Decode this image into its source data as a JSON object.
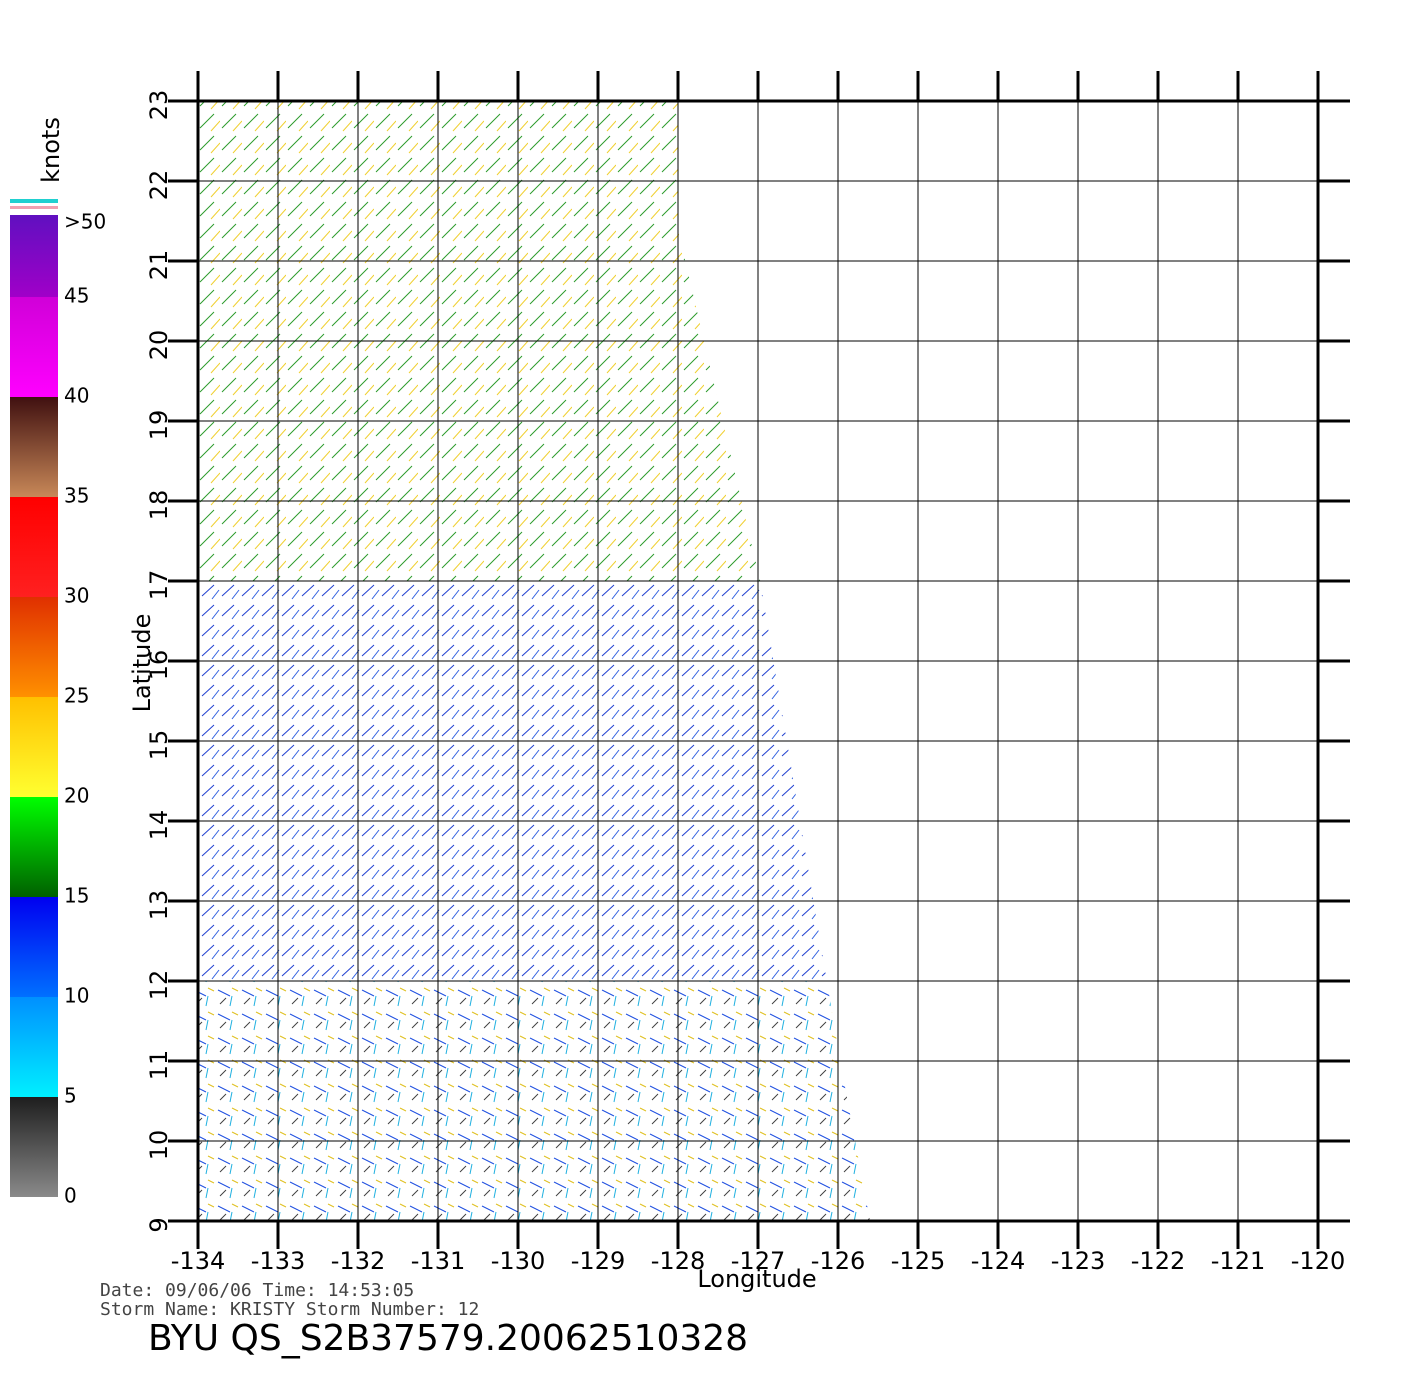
{
  "chart_data": {
    "type": "vector_field",
    "x_label": "Longitude",
    "y_label": "Latitude",
    "xlim": [
      -134,
      -120
    ],
    "xticks": [
      -134,
      -133,
      -132,
      -131,
      -130,
      -129,
      -128,
      -127,
      -126,
      -125,
      -124,
      -123,
      -122,
      -121,
      -120
    ],
    "ylim": [
      9,
      23
    ],
    "yticks": [
      9,
      10,
      11,
      12,
      13,
      14,
      15,
      16,
      17,
      18,
      19,
      20,
      21,
      22,
      23
    ],
    "grid": true,
    "colorbar": {
      "label": "knots",
      "lim": [
        0,
        50
      ],
      "ticks": [
        0,
        5,
        10,
        15,
        20,
        25,
        30,
        35,
        40,
        {
          "value": 45,
          "label": "45"
        },
        {
          "value": 50,
          "label": ">50"
        }
      ],
      "colors": [
        [
          "#8a8a8a",
          "#1e1e1e"
        ],
        [
          "#00f0ff",
          "#0090ff"
        ],
        [
          "#0070ff",
          "#0000f0"
        ],
        [
          "#006000",
          "#00ff00"
        ],
        [
          "#ffff30",
          "#ffc000"
        ],
        [
          "#ff9000",
          "#e03000"
        ],
        [
          "#ff2020",
          "#ff0000"
        ],
        [
          "#c88858",
          "#401010"
        ],
        [
          "#ff00ff",
          "#d000d8"
        ],
        [
          "#a000c8",
          "#6010c0"
        ]
      ]
    },
    "info": [
      "Date:  09/06/06   Time:  14:53:05",
      "Storm  Name:  KRISTY    Storm  Number:  12"
    ],
    "title": "BYU  QS_S2B37579.20062510328"
  }
}
